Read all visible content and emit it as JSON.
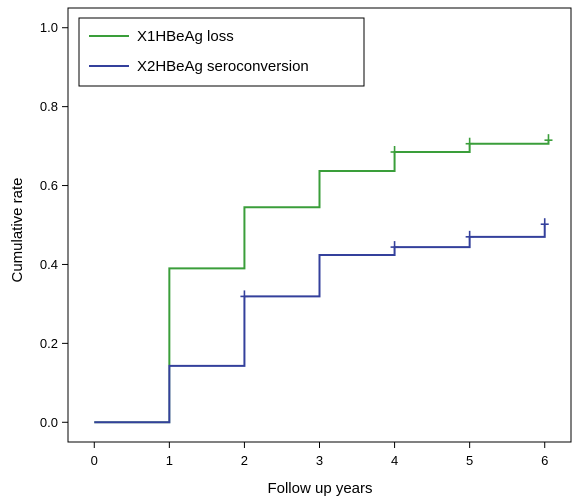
{
  "chart_data": {
    "type": "line",
    "title": "",
    "xlabel": "Follow up years",
    "ylabel": "Cumulative rate",
    "xlim": [
      -0.35,
      6.35
    ],
    "ylim": [
      -0.05,
      1.05
    ],
    "xticks": [
      0,
      1,
      2,
      3,
      4,
      5,
      6
    ],
    "yticks": [
      0.0,
      0.2,
      0.4,
      0.6,
      0.8,
      1.0
    ],
    "xtick_labels": [
      "0",
      "1",
      "2",
      "3",
      "4",
      "5",
      "6"
    ],
    "ytick_labels": [
      "0.0",
      "0.2",
      "0.4",
      "0.6",
      "0.8",
      "1.0"
    ],
    "grid": false,
    "legend_position": "top-left",
    "step": "post",
    "series": [
      {
        "name": "X1HBeAg loss",
        "color": "#3a9e3a",
        "x": [
          0,
          1,
          2,
          3,
          4,
          5,
          6.05
        ],
        "y": [
          0.0,
          0.39,
          0.545,
          0.637,
          0.685,
          0.706,
          0.715
        ],
        "censored": [
          [
            4.0,
            0.685
          ],
          [
            5.0,
            0.706
          ],
          [
            6.05,
            0.715
          ]
        ]
      },
      {
        "name": "X2HBeAg seroconversion",
        "color": "#34409c",
        "x": [
          0,
          1,
          2,
          3,
          4,
          5,
          6.0
        ],
        "y": [
          0.0,
          0.143,
          0.319,
          0.424,
          0.444,
          0.47,
          0.502
        ],
        "censored": [
          [
            2.0,
            0.319
          ],
          [
            4.0,
            0.444
          ],
          [
            5.0,
            0.47
          ],
          [
            6.0,
            0.502
          ]
        ]
      }
    ]
  }
}
